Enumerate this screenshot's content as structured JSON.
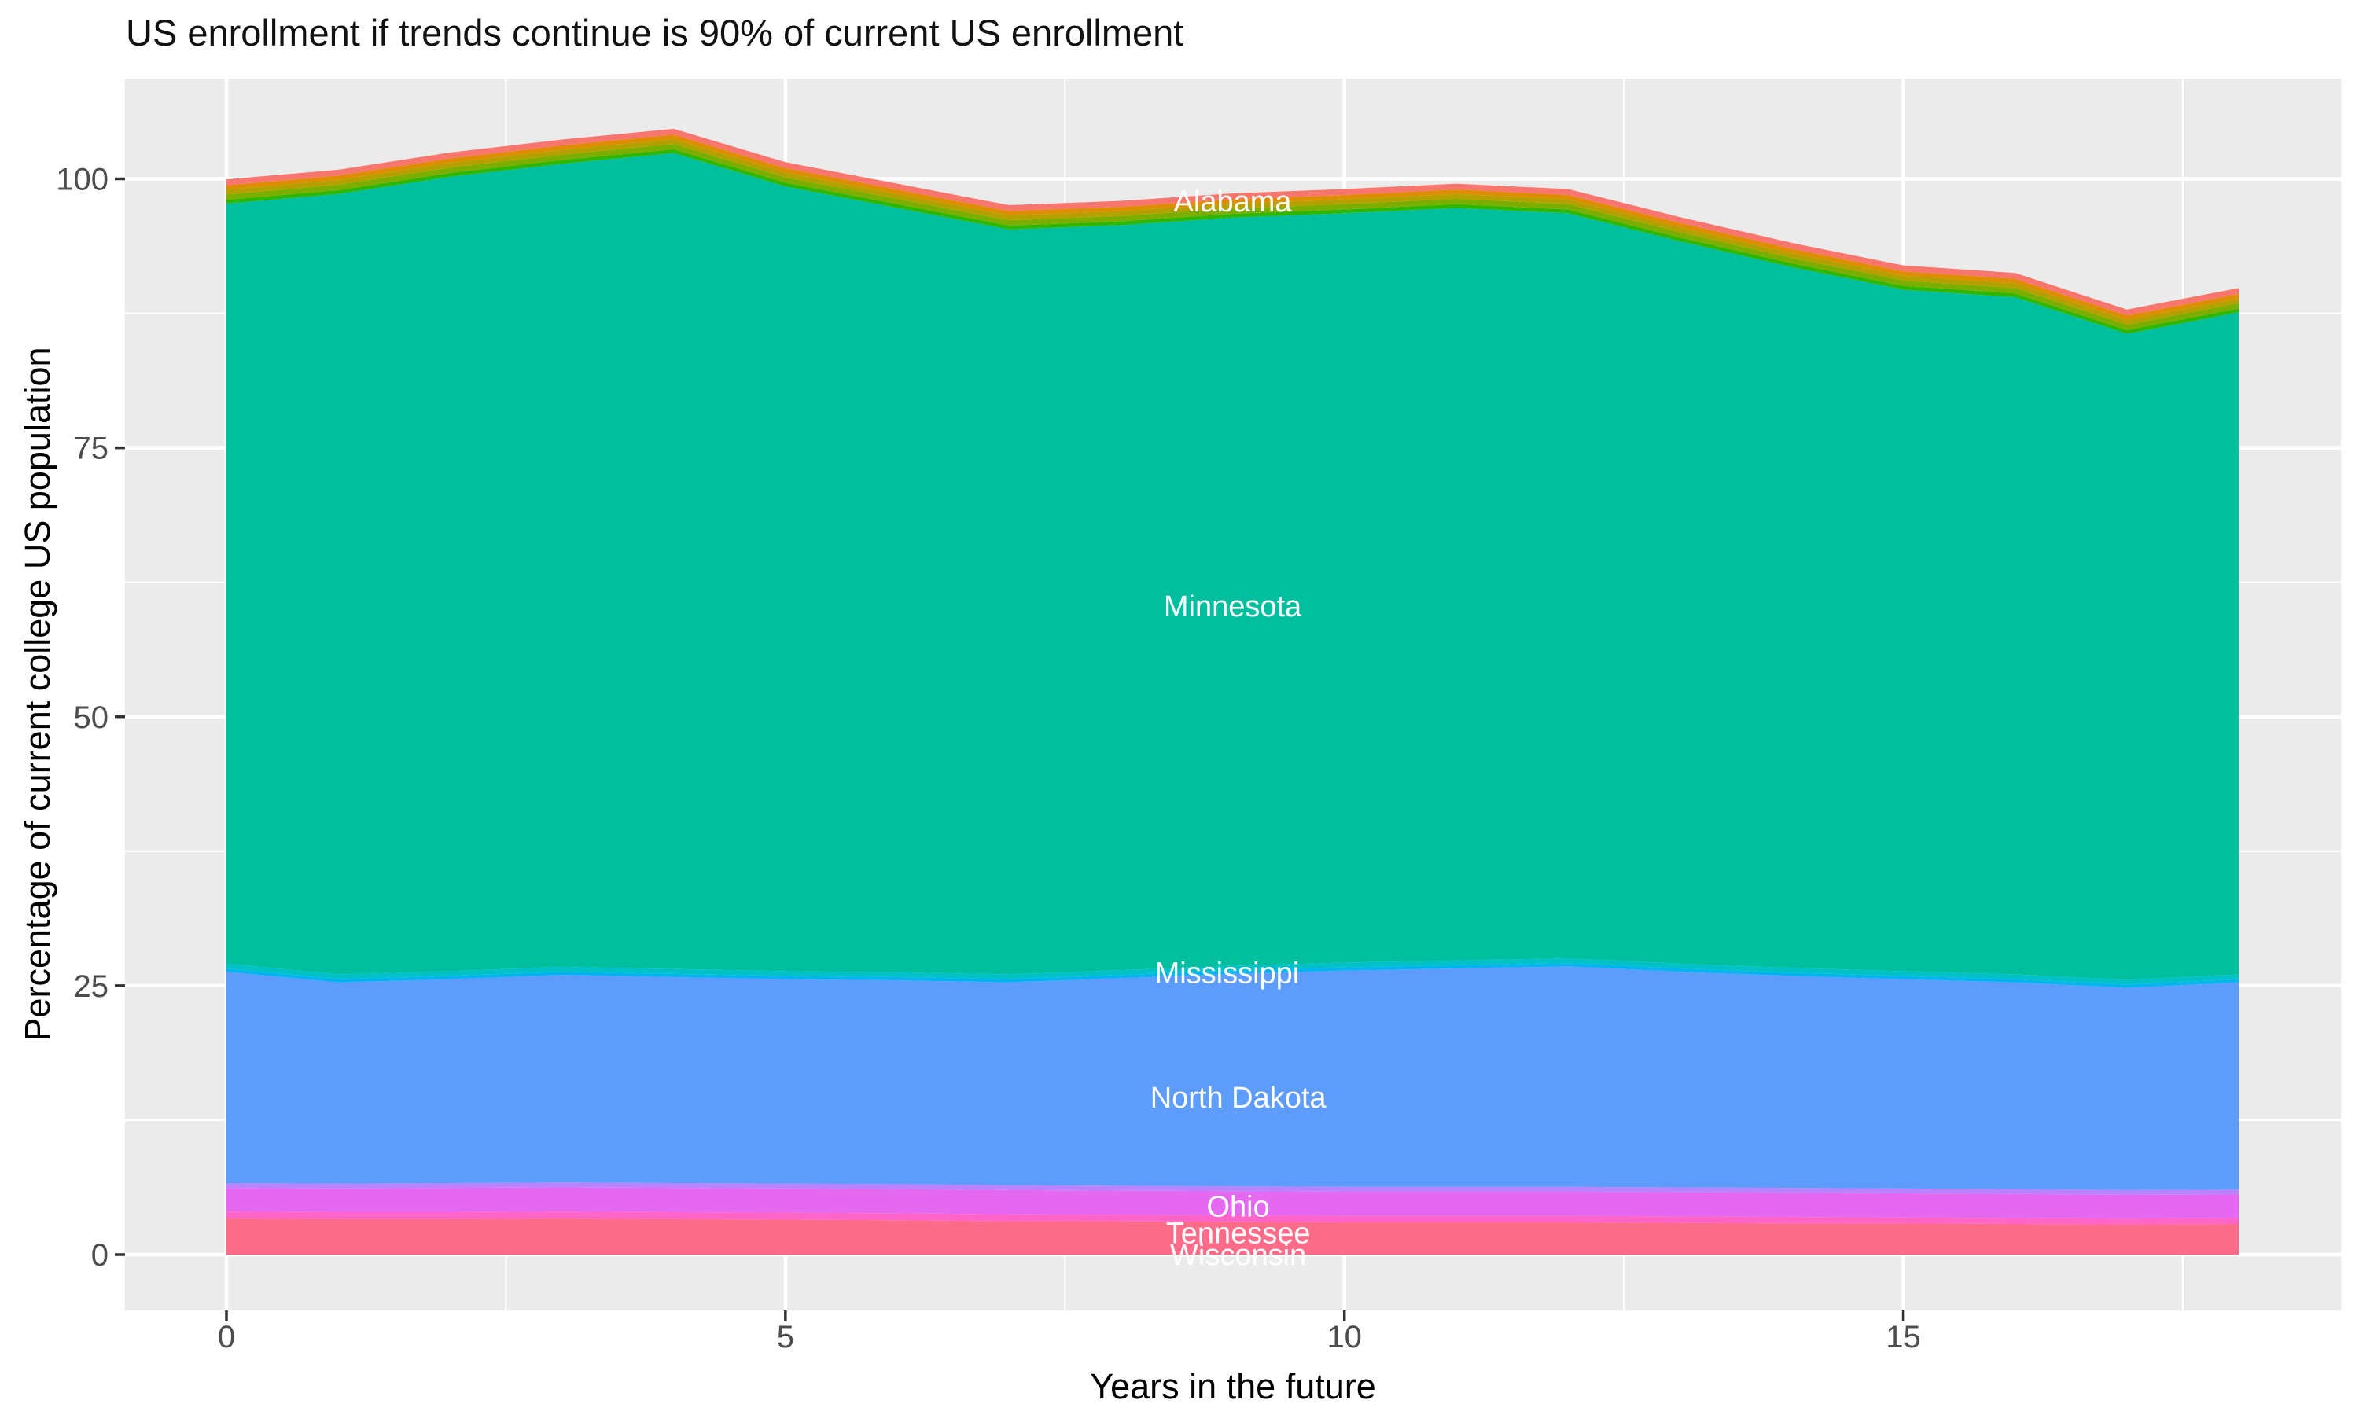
{
  "title": "US enrollment if trends continue is 90% of current US enrollment",
  "x_axis": {
    "label": "Years in the future",
    "ticks": [
      0,
      5,
      10,
      15
    ],
    "minor_ticks": [
      2.5,
      7.5,
      12.5,
      17.5
    ],
    "range": [
      0,
      18
    ]
  },
  "y_axis": {
    "label": "Percentage of current college US population",
    "ticks": [
      100,
      75,
      50,
      25,
      0
    ],
    "minor_ticks": [
      12.5,
      37.5,
      62.5,
      87.5
    ],
    "range_shown": [
      0,
      109
    ]
  },
  "panel": {
    "bg_color": "#EBEBEB",
    "grid_color": "#FFFFFF",
    "tick_color": "#333333"
  },
  "chart_data": {
    "type": "area",
    "stacked": true,
    "title": "US enrollment if trends continue is 90% of current US enrollment",
    "xlabel": "Years in the future",
    "ylabel": "Percentage of current college US population",
    "xlim": [
      0,
      18
    ],
    "ylim_ticks": [
      0,
      100
    ],
    "grid": true,
    "x": [
      0,
      1,
      2,
      3,
      4,
      5,
      6,
      7,
      8,
      9,
      10,
      11,
      12,
      13,
      14,
      15,
      16,
      17,
      18
    ],
    "series": [
      {
        "name": "Wisconsin",
        "labeled": true,
        "color": "#FC6C89",
        "values": [
          3.35,
          3.3,
          3.3,
          3.35,
          3.3,
          3.25,
          3.2,
          3.1,
          3.1,
          3.05,
          3.0,
          3.0,
          3.0,
          2.95,
          2.9,
          2.9,
          2.85,
          2.8,
          2.85
        ]
      },
      {
        "name": "Tennessee",
        "labeled": true,
        "color": "#FF64C8",
        "values": [
          0.65,
          0.65,
          0.65,
          0.65,
          0.65,
          0.65,
          0.65,
          0.65,
          0.6,
          0.6,
          0.6,
          0.6,
          0.6,
          0.6,
          0.6,
          0.55,
          0.55,
          0.55,
          0.55
        ]
      },
      {
        "name": "unlabeled-state-magenta",
        "labeled": false,
        "color": "#E568F0",
        "values": [
          2.2,
          2.2,
          2.25,
          2.25,
          2.25,
          2.25,
          2.25,
          2.25,
          2.25,
          2.25,
          2.25,
          2.25,
          2.25,
          2.25,
          2.25,
          2.25,
          2.25,
          2.2,
          2.2
        ]
      },
      {
        "name": "Ohio",
        "labeled": true,
        "color": "#B983FF",
        "values": [
          0.45,
          0.45,
          0.45,
          0.45,
          0.45,
          0.45,
          0.45,
          0.45,
          0.45,
          0.45,
          0.45,
          0.45,
          0.45,
          0.45,
          0.45,
          0.45,
          0.45,
          0.45,
          0.45
        ]
      },
      {
        "name": "North Dakota",
        "labeled": true,
        "color": "#5E9CFC",
        "values": [
          19.65,
          18.7,
          18.95,
          19.3,
          19.15,
          19.0,
          18.95,
          18.85,
          19.3,
          19.75,
          20.1,
          20.3,
          20.5,
          20.05,
          19.7,
          19.45,
          19.2,
          18.8,
          19.25
        ]
      },
      {
        "name": "unlabeled-state-lightblue",
        "labeled": false,
        "color": "#00B4F0",
        "values": [
          0.3,
          0.3,
          0.3,
          0.3,
          0.3,
          0.3,
          0.3,
          0.3,
          0.3,
          0.3,
          0.3,
          0.3,
          0.3,
          0.3,
          0.3,
          0.3,
          0.3,
          0.3,
          0.3
        ]
      },
      {
        "name": "Mississippi",
        "labeled": true,
        "color": "#00C1C7",
        "values": [
          0.45,
          0.45,
          0.45,
          0.45,
          0.45,
          0.45,
          0.45,
          0.45,
          0.45,
          0.45,
          0.45,
          0.45,
          0.45,
          0.45,
          0.45,
          0.45,
          0.45,
          0.45,
          0.45
        ]
      },
      {
        "name": "Minnesota",
        "labeled": true,
        "color": "#00BF9E",
        "values": [
          70.65,
          72.55,
          73.85,
          74.65,
          75.85,
          72.95,
          71.05,
          69.25,
          69.25,
          69.55,
          69.65,
          69.95,
          69.25,
          67.15,
          65.15,
          63.35,
          62.95,
          60.05,
          61.55
        ]
      },
      {
        "name": "unlabeled-state-green",
        "labeled": false,
        "color": "#2FB600",
        "values": [
          0.35,
          0.35,
          0.35,
          0.35,
          0.35,
          0.35,
          0.35,
          0.35,
          0.35,
          0.35,
          0.35,
          0.35,
          0.35,
          0.35,
          0.35,
          0.35,
          0.35,
          0.35,
          0.35
        ]
      },
      {
        "name": "unlabeled-state-olive",
        "labeled": false,
        "color": "#7CAE00",
        "values": [
          0.5,
          0.5,
          0.5,
          0.5,
          0.5,
          0.5,
          0.5,
          0.5,
          0.5,
          0.5,
          0.5,
          0.5,
          0.5,
          0.5,
          0.5,
          0.5,
          0.5,
          0.5,
          0.5
        ]
      },
      {
        "name": "unlabeled-state-darkyellow",
        "labeled": false,
        "color": "#B5A000",
        "values": [
          0.45,
          0.45,
          0.45,
          0.45,
          0.45,
          0.45,
          0.45,
          0.45,
          0.45,
          0.45,
          0.45,
          0.45,
          0.45,
          0.45,
          0.45,
          0.45,
          0.45,
          0.45,
          0.45
        ]
      },
      {
        "name": "unlabeled-state-gold",
        "labeled": false,
        "color": "#DE8C00",
        "values": [
          0.4,
          0.4,
          0.4,
          0.4,
          0.4,
          0.4,
          0.4,
          0.4,
          0.4,
          0.4,
          0.4,
          0.4,
          0.4,
          0.4,
          0.4,
          0.4,
          0.4,
          0.4,
          0.4
        ]
      },
      {
        "name": "Alabama",
        "labeled": true,
        "color": "#F8766D",
        "values": [
          0.55,
          0.55,
          0.55,
          0.55,
          0.55,
          0.55,
          0.55,
          0.55,
          0.55,
          0.55,
          0.55,
          0.55,
          0.55,
          0.55,
          0.55,
          0.55,
          0.55,
          0.55,
          0.55
        ]
      }
    ],
    "area_labels": [
      {
        "text": "Alabama",
        "year": 9.0,
        "value": 97.9
      },
      {
        "text": "Minnesota",
        "year": 9.0,
        "value": 60.3
      },
      {
        "text": "Mississippi",
        "year": 8.95,
        "value": 26.2
      },
      {
        "text": "North Dakota",
        "year": 9.05,
        "value": 14.6
      },
      {
        "text": "Ohio",
        "year": 9.05,
        "value": 4.5
      },
      {
        "text": "Tennessee",
        "year": 9.05,
        "value": 2.0
      },
      {
        "text": "Wisconsin",
        "year": 9.05,
        "value": 0.0
      }
    ],
    "legend_position": "none"
  }
}
